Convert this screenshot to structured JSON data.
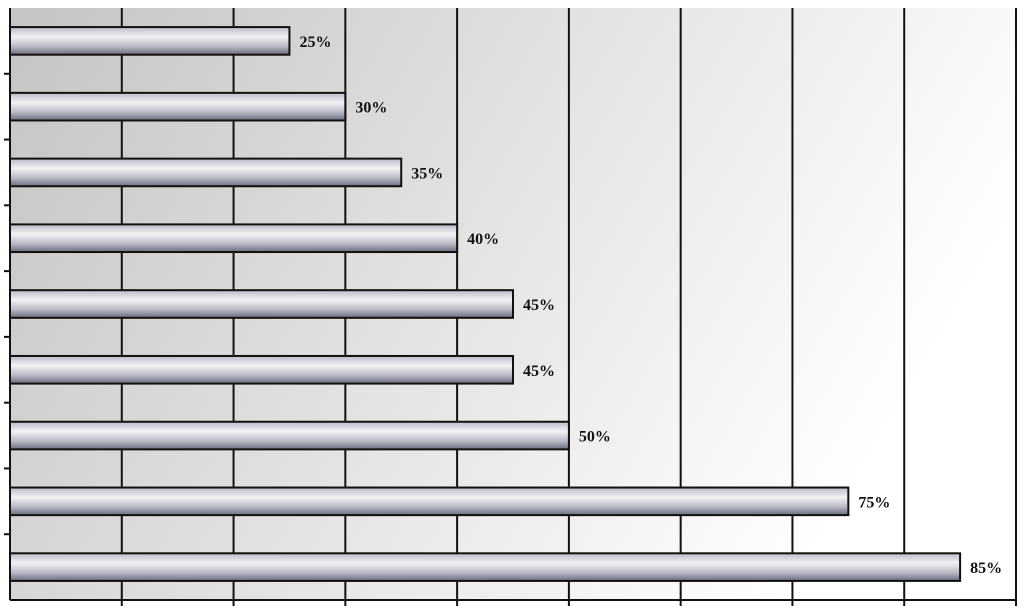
{
  "chart_data": {
    "type": "bar",
    "orientation": "horizontal",
    "categories": [
      "",
      "",
      "",
      "",
      "",
      "",
      "",
      "",
      ""
    ],
    "values": [
      25,
      30,
      35,
      40,
      45,
      45,
      50,
      75,
      85
    ],
    "value_labels": [
      "25%",
      "30%",
      "35%",
      "40%",
      "45%",
      "45%",
      "50%",
      "75%",
      "85%"
    ],
    "title": "",
    "xlabel": "",
    "ylabel": "",
    "xlim": [
      0,
      90
    ],
    "x_major_step": 10,
    "grid": "vertical",
    "legend": "none",
    "colors": {
      "bar_light": "#f2f2f6",
      "bar_mid": "#b9bac6",
      "bar_dark": "#6a6b7c",
      "bar_outline": "#111111",
      "plot_bg_left": "#c4c4c4",
      "plot_bg_right": "#ffffff",
      "gridline": "#111111"
    }
  }
}
